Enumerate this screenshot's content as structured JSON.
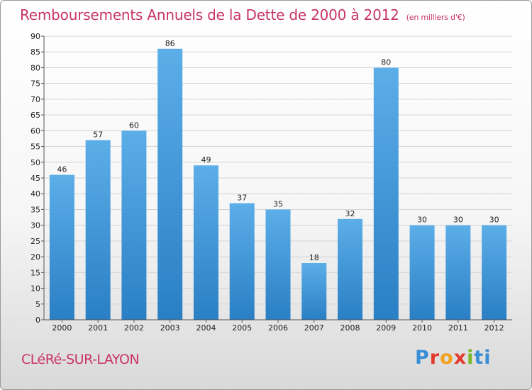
{
  "title": "Remboursements Annuels de la Dette de 2000 à 2012",
  "unit": "(en milliers d'€)",
  "commune": "CLéRé-SUR-LAYON",
  "logo": {
    "p1": "P",
    "p2": "r",
    "p3": "o",
    "p4": "x",
    "p5": "i",
    "p6": "ti"
  },
  "colors": {
    "accent": "#c8346a",
    "bar_top": "#5caee8",
    "bar_bottom": "#2a7fc4"
  },
  "chart_data": {
    "type": "bar",
    "title": "Remboursements Annuels de la Dette de 2000 à 2012",
    "xlabel": "",
    "ylabel": "",
    "ylim": [
      0,
      90
    ],
    "yticks": [
      0,
      5,
      10,
      15,
      20,
      25,
      30,
      35,
      40,
      45,
      50,
      55,
      60,
      65,
      70,
      75,
      80,
      85,
      90
    ],
    "grid": true,
    "categories": [
      "2000",
      "2001",
      "2002",
      "2003",
      "2004",
      "2005",
      "2006",
      "2007",
      "2008",
      "2009",
      "2010",
      "2011",
      "2012"
    ],
    "values": [
      46,
      57,
      60,
      86,
      49,
      37,
      35,
      18,
      32,
      80,
      30,
      30,
      30
    ]
  }
}
